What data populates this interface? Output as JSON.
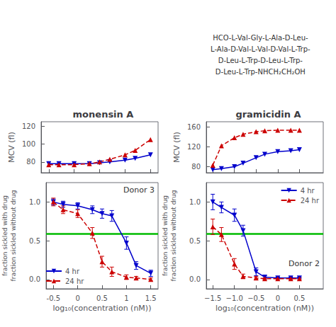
{
  "chart_data": [
    {
      "type": "line",
      "title": "monensin A",
      "ylabel": "MCV (fl)",
      "xlim": [
        -0.65,
        1.65
      ],
      "xticks": [
        -0.5,
        0.0,
        0.5,
        1.0,
        1.5
      ],
      "ylim": [
        68,
        125
      ],
      "yticks": [
        80,
        100,
        120
      ],
      "tick_labels": "y",
      "grid": false,
      "series": [
        {
          "name": "4 hr",
          "color": "#0000cc",
          "marker": "triangle_down",
          "line_style": "solid",
          "x": [
            -0.5,
            -0.3,
            0.0,
            0.3,
            0.5,
            0.7,
            1.0,
            1.2,
            1.5
          ],
          "values": [
            78,
            78,
            78,
            78,
            79,
            80,
            82,
            84,
            88
          ]
        },
        {
          "name": "24 hr",
          "color": "#cc0000",
          "marker": "triangle_up",
          "line_style": "dashed",
          "x": [
            -0.5,
            -0.3,
            0.0,
            0.3,
            0.5,
            0.7,
            1.0,
            1.2,
            1.5
          ],
          "values": [
            77,
            77,
            77,
            78,
            80,
            83,
            88,
            93,
            105
          ]
        }
      ]
    },
    {
      "type": "line",
      "xlabel": "log₁₀(concentration (nM))",
      "ylabel": "fraction sickled with drug\nfraction sickled without drug",
      "xlim": [
        -0.65,
        1.65
      ],
      "xticks": [
        -0.5,
        0.0,
        0.5,
        1.0,
        1.5
      ],
      "ylim": [
        -0.12,
        1.25
      ],
      "yticks": [
        {
          "value": 0.0,
          "label": "0.0"
        },
        0.5,
        {
          "value": 1.0,
          "label": "1.0"
        }
      ],
      "grid": false,
      "legend": "lower left",
      "annotations": [
        "Donor 3"
      ],
      "reference_line": {
        "y": 0.595,
        "color": "#00bb00"
      },
      "series": [
        {
          "name": "4 hr",
          "color": "#0000cc",
          "marker": "triangle_down",
          "line_style": "solid",
          "x": [
            -0.5,
            -0.3,
            0.0,
            0.3,
            0.5,
            0.7,
            1.0,
            1.2,
            1.5
          ],
          "values": [
            1.0,
            0.97,
            0.95,
            0.9,
            0.85,
            0.82,
            0.47,
            0.18,
            0.08
          ],
          "errors": [
            0.04,
            0.04,
            0.04,
            0.05,
            0.06,
            0.07,
            0.08,
            0.05,
            0.04
          ]
        },
        {
          "name": "24 hr",
          "color": "#cc0000",
          "marker": "triangle_up",
          "line_style": "dashed",
          "x": [
            -0.5,
            -0.3,
            0.0,
            0.3,
            0.5,
            0.7,
            1.0,
            1.2,
            1.5
          ],
          "values": [
            1.0,
            0.9,
            0.85,
            0.6,
            0.23,
            0.1,
            0.03,
            0.02,
            0.0
          ],
          "errors": [
            0.05,
            0.05,
            0.05,
            0.07,
            0.07,
            0.06,
            0.03,
            0.02,
            0.02
          ]
        }
      ]
    },
    {
      "type": "line",
      "title": "gramicidin A",
      "ylabel": "MCV (fl)",
      "xlim": [
        -1.65,
        1.05
      ],
      "xticks": [
        -1.5,
        -1.0,
        -0.5,
        0.0,
        0.5
      ],
      "ylim": [
        68,
        170
      ],
      "yticks": [
        80,
        120,
        160
      ],
      "tick_labels": "y",
      "grid": false,
      "annotations": [
        "HCO-L-Val-Gly-L-Ala-D-Leu-\nL-Ala-D-Val-L-Val-D-Val-L-Trp-\nD-Leu-L-Trp-D-Leu-L-Trp-\nD-Leu-L-Trp-NHCH₂CH₂OH"
      ],
      "series": [
        {
          "name": "4 hr",
          "color": "#0000cc",
          "marker": "triangle_down",
          "line_style": "solid",
          "x": [
            -1.5,
            -1.3,
            -1.0,
            -0.8,
            -0.5,
            -0.3,
            0.0,
            0.3,
            0.5
          ],
          "values": [
            74,
            76,
            80,
            87,
            98,
            105,
            110,
            112,
            114
          ]
        },
        {
          "name": "24 hr",
          "color": "#cc0000",
          "marker": "triangle_up",
          "line_style": "dashed",
          "x": [
            -1.5,
            -1.3,
            -1.0,
            -0.8,
            -0.5,
            -0.3,
            0.0,
            0.3,
            0.5
          ],
          "values": [
            83,
            122,
            138,
            145,
            150,
            152,
            153,
            153,
            153
          ]
        }
      ]
    },
    {
      "type": "line",
      "xlabel": "log₁₀(concentration (nM))",
      "ylabel": "fraction sickled with drug\nfraction sickled without drug",
      "xlim": [
        -1.65,
        1.05
      ],
      "xticks": [
        {
          "value": -1.5,
          "label": "−1.5"
        },
        {
          "value": -1.0,
          "label": "−1.0"
        },
        {
          "value": -0.5,
          "label": "−0.5"
        },
        0.0,
        0.5
      ],
      "ylim": [
        -0.12,
        1.25
      ],
      "yticks": [
        {
          "value": 0.0,
          "label": "0.0"
        },
        0.5,
        {
          "value": 1.0,
          "label": "1.0"
        }
      ],
      "grid": false,
      "legend": "upper right",
      "annotations": [
        "Donor 2"
      ],
      "reference_line": {
        "y": 0.595,
        "color": "#00bb00"
      },
      "series": [
        {
          "name": "4 hr",
          "color": "#0000cc",
          "marker": "triangle_down",
          "line_style": "solid",
          "x": [
            -1.5,
            -1.3,
            -1.0,
            -0.8,
            -0.5,
            -0.3,
            0.0,
            0.3,
            0.5
          ],
          "values": [
            1.0,
            0.93,
            0.83,
            0.63,
            0.1,
            0.03,
            0.02,
            0.02,
            0.02
          ],
          "errors": [
            0.1,
            0.07,
            0.08,
            0.07,
            0.05,
            0.02,
            0.01,
            0.01,
            0.01
          ]
        },
        {
          "name": "24 hr",
          "color": "#cc0000",
          "marker": "triangle_up",
          "line_style": "dashed",
          "x": [
            -1.5,
            -1.3,
            -1.0,
            -0.8,
            -0.5,
            -0.3,
            0.0,
            0.3,
            0.5
          ],
          "values": [
            0.68,
            0.58,
            0.2,
            0.04,
            0.02,
            0.01,
            0.01,
            0.01,
            0.01
          ],
          "errors": [
            0.1,
            0.09,
            0.07,
            0.03,
            0.02,
            0.01,
            0.01,
            0.01,
            0.01
          ]
        }
      ]
    }
  ]
}
